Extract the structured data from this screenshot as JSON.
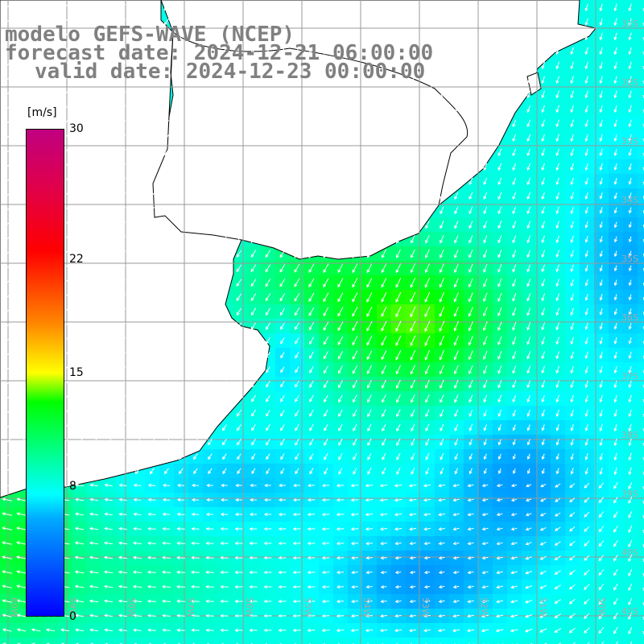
{
  "titles": {
    "model": "modelo GEFS-WAVE (NCEP)",
    "forecast_date": "forecast date: 2024-12-21 06:00:00",
    "valid_date": "valid date: 2024-12-23 00:00:00"
  },
  "colorbar": {
    "unit": "[m/s]",
    "range": [
      0,
      30
    ],
    "ticks": [
      {
        "label": "30",
        "value": 30
      },
      {
        "label": "22",
        "value": 22
      },
      {
        "label": "15",
        "value": 15
      },
      {
        "label": "8",
        "value": 8
      },
      {
        "label": "0",
        "value": 0
      }
    ],
    "colors": [
      "#0000ff",
      "#00aaff",
      "#00ffff",
      "#00ff00",
      "#ffff00",
      "#ff8800",
      "#ff0000",
      "#c00080"
    ]
  },
  "map": {
    "lon_range": [
      -60,
      -49
    ],
    "lat_range": [
      -42,
      -31
    ],
    "lat_labels": [
      "31S",
      "32S",
      "33S",
      "34S",
      "35S",
      "36S",
      "37S",
      "38S",
      "39S",
      "40S",
      "41S"
    ],
    "lon_labels": [
      "60W",
      "59W",
      "58W",
      "57W",
      "56W",
      "55W",
      "54W",
      "53W",
      "52W",
      "51W",
      "50W"
    ],
    "land_color": "#ffffff",
    "grid_color": "#999999"
  }
}
